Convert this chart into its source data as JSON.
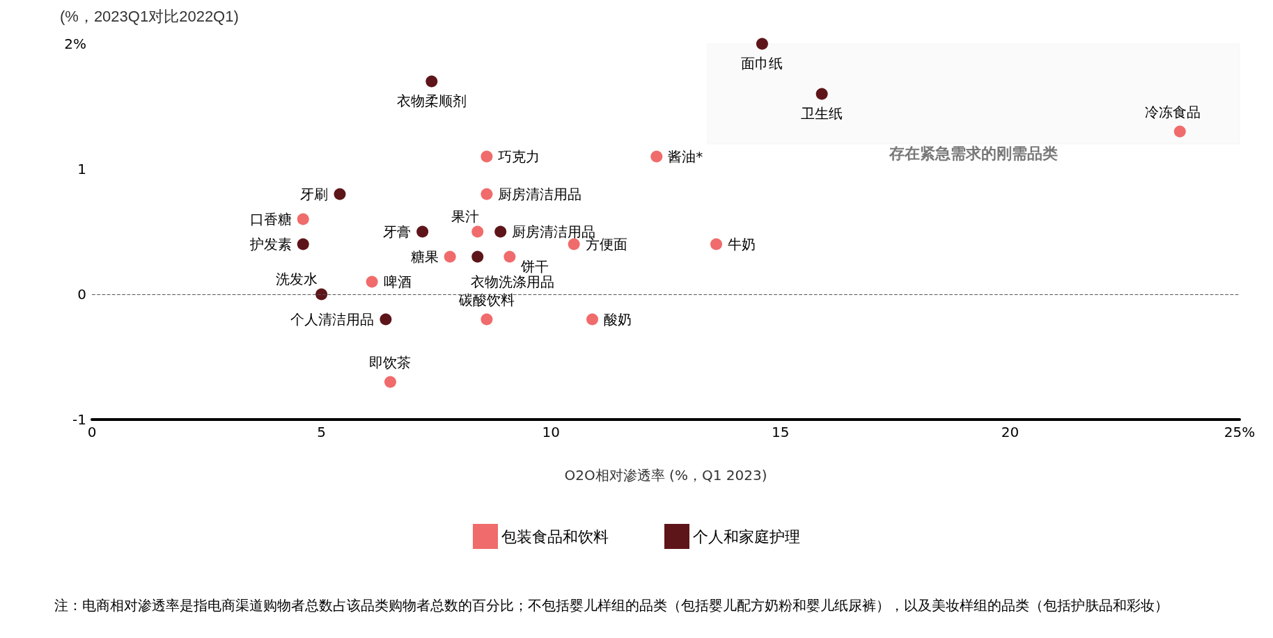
{
  "chart_data": {
    "type": "scatter",
    "ylabel": "(%，2023Q1对比2022Q1)",
    "xlabel": "O2O相对渗透率 (%，Q1 2023)",
    "xlim": [
      0,
      25
    ],
    "xticks": [
      0,
      5,
      10,
      15,
      20,
      {
        "value": 25,
        "label": "25%"
      }
    ],
    "ylim": [
      -1,
      2
    ],
    "yticks": [
      -1,
      0,
      1,
      {
        "value": 2,
        "label": "2%"
      }
    ],
    "grid": false,
    "legend": "bottom",
    "marker": "circle",
    "ref_lines": [
      {
        "axis": "y",
        "value": 0,
        "label": null,
        "color": "#555555",
        "line_style": "dashed"
      }
    ],
    "bands": [
      {
        "axis": "y",
        "from": 1.2,
        "to": 2,
        "label": "存在紧急需求的刚需品类",
        "color": "#bbbbbb"
      }
    ],
    "annotations": [
      "注：电商相对渗透率是指电商渠道购物者总数占该品类购物者总数的百分比；不包括婴儿样组的品类（包括婴儿配方奶粉和婴儿纸尿裤），以及美妆样组的品类（包括护肤品和彩妆）"
    ],
    "series": [
      {
        "name": "包装食品和饮料",
        "color": "#f06b6b",
        "x": [
          23.7,
          8.6,
          12.3,
          8.6,
          4.6,
          8.4,
          10.5,
          13.6,
          7.8,
          9.1,
          6.1,
          8.6,
          10.9,
          6.5
        ],
        "values": [
          1.3,
          1.1,
          1.1,
          0.8,
          0.6,
          0.5,
          0.4,
          0.4,
          0.3,
          0.3,
          0.1,
          -0.2,
          -0.2,
          -0.7
        ],
        "value_labels": [
          "冷冻食品",
          "巧克力",
          "酱油*",
          "厨房清洁用品",
          "口香糖",
          "果汁",
          "方便面",
          "牛奶",
          "糖果",
          "饼干",
          "啤酒",
          "碳酸饮料",
          "酸奶",
          "即饮茶"
        ]
      },
      {
        "name": "个人和家庭护理",
        "color": "#5e1519",
        "x": [
          14.6,
          15.9,
          7.4,
          5.4,
          7.2,
          8.9,
          4.6,
          8.4,
          5.0,
          6.4
        ],
        "values": [
          2.0,
          1.6,
          1.7,
          0.8,
          0.5,
          0.5,
          0.4,
          0.3,
          0.0,
          -0.2
        ],
        "value_labels": [
          "面巾纸",
          "卫生纸",
          "衣物柔顺剂",
          "牙刷",
          "牙膏",
          "厨房清洁用品",
          "护发素",
          "衣物洗涤用品",
          "洗发水",
          "个人清洁用品"
        ]
      }
    ]
  }
}
